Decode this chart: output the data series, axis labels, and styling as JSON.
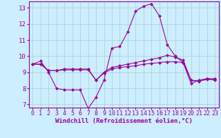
{
  "background_color": "#cceeff",
  "line_color": "#990099",
  "grid_color": "#aacccc",
  "xlabel": "Windchill (Refroidissement éolien,°C)",
  "xlim": [
    -0.5,
    23.5
  ],
  "ylim": [
    6.8,
    13.4
  ],
  "yticks": [
    7,
    8,
    9,
    10,
    11,
    12,
    13
  ],
  "xticks": [
    0,
    1,
    2,
    3,
    4,
    5,
    6,
    7,
    8,
    9,
    10,
    11,
    12,
    13,
    14,
    15,
    16,
    17,
    18,
    19,
    20,
    21,
    22,
    23
  ],
  "line1_x": [
    0,
    1,
    2,
    3,
    4,
    5,
    6,
    7,
    8,
    9,
    10,
    11,
    12,
    13,
    14,
    15,
    16,
    17,
    18,
    19,
    20,
    21,
    22,
    23
  ],
  "line1_y": [
    9.5,
    9.7,
    9.0,
    8.0,
    7.9,
    7.9,
    7.9,
    6.75,
    7.45,
    8.5,
    10.5,
    10.6,
    11.5,
    12.8,
    13.1,
    13.25,
    12.5,
    10.7,
    10.0,
    9.6,
    8.3,
    8.5,
    8.6,
    8.5
  ],
  "line2_x": [
    0,
    1,
    2,
    3,
    4,
    5,
    6,
    7,
    8,
    9,
    10,
    11,
    12,
    13,
    14,
    15,
    16,
    17,
    18,
    19,
    20,
    21,
    22,
    23
  ],
  "line2_y": [
    9.5,
    9.5,
    9.1,
    9.1,
    9.15,
    9.15,
    9.15,
    9.15,
    8.5,
    8.95,
    9.2,
    9.3,
    9.35,
    9.4,
    9.5,
    9.55,
    9.6,
    9.65,
    9.65,
    9.6,
    8.5,
    8.45,
    8.55,
    8.55
  ],
  "line3_x": [
    0,
    1,
    2,
    3,
    4,
    5,
    6,
    7,
    8,
    9,
    10,
    11,
    12,
    13,
    14,
    15,
    16,
    17,
    18,
    19,
    20,
    21,
    22,
    23
  ],
  "line3_y": [
    9.5,
    9.5,
    9.1,
    9.1,
    9.2,
    9.2,
    9.2,
    9.2,
    8.5,
    9.0,
    9.3,
    9.4,
    9.5,
    9.6,
    9.7,
    9.8,
    9.9,
    10.05,
    9.95,
    9.75,
    8.5,
    8.45,
    8.6,
    8.6
  ],
  "marker": "D",
  "markersize": 2.0,
  "linewidth": 0.8,
  "xlabel_fontsize": 6.5,
  "tick_fontsize": 6.0
}
